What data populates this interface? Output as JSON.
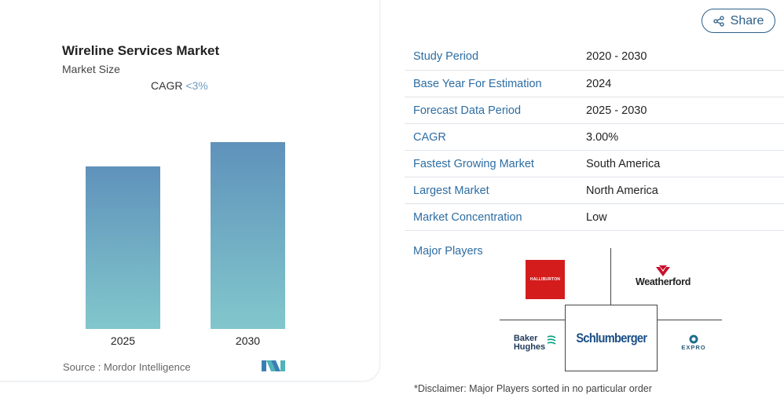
{
  "chart": {
    "title": "Wireline Services Market",
    "subtitle": "Market Size",
    "cagr_label": "CAGR",
    "cagr_value": "<3%",
    "source": "Source :  Mordor Intelligence"
  },
  "chart_data": {
    "type": "bar",
    "categories": [
      "2025",
      "2030"
    ],
    "values": [
      0.87,
      1.0
    ],
    "colors": {
      "top": "#5f92bb",
      "bottom": "#82c7cc"
    }
  },
  "share": {
    "label": "Share",
    "icon": "share-icon"
  },
  "details": [
    {
      "label": "Study Period",
      "value": "2020 - 2030"
    },
    {
      "label": "Base Year For Estimation",
      "value": "2024"
    },
    {
      "label": "Forecast Data Period",
      "value": "2025 - 2030"
    },
    {
      "label": "CAGR",
      "value": "3.00%"
    },
    {
      "label": "Fastest Growing Market",
      "value": "South America"
    },
    {
      "label": "Largest Market",
      "value": "North America"
    },
    {
      "label": "Market Concentration",
      "value": "Low"
    }
  ],
  "players": {
    "label": "Major Players",
    "halliburton": "HALLIBURTON",
    "weatherford": "Weatherford",
    "schlumberger": "Schlumberger",
    "baker_line1": "Baker",
    "baker_line2": "Hughes",
    "expro": "EXPRO"
  },
  "disclaimer": "*Disclaimer: Major Players sorted in no particular order",
  "colors": {
    "accent": "#2d6da3",
    "share_border": "#2d5f88",
    "halliburton_red": "#d41c1c"
  }
}
